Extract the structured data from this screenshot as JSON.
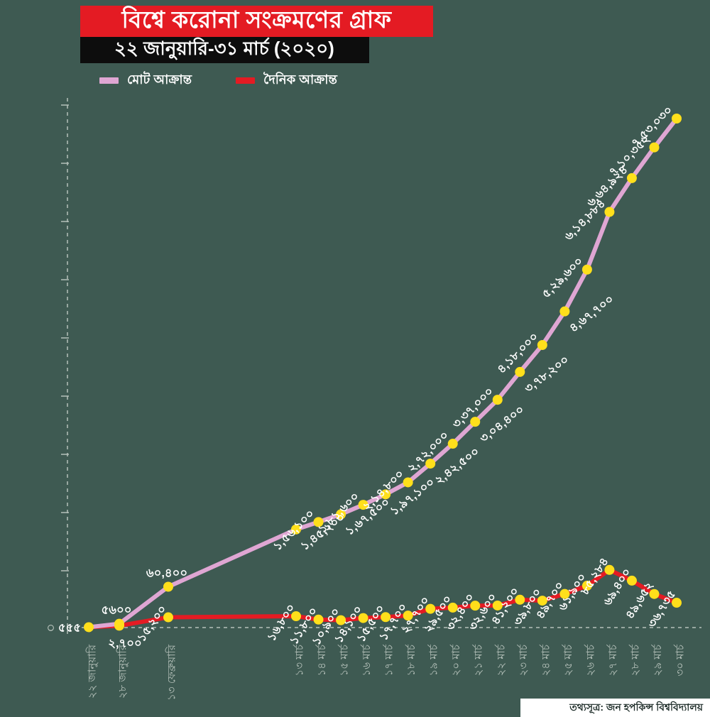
{
  "page": {
    "background_color": "#3e5a52"
  },
  "header": {
    "title": "বিশ্বে করোনা সংক্রমণের গ্রাফ",
    "subtitle": "২২ জানুয়ারি-৩১ মার্চ (২০২০)",
    "title_bar_color": "#e41b23",
    "subtitle_bar_color": "#0d0d0d"
  },
  "legend": [
    {
      "label": "মোট আক্রান্ত",
      "color": "#dfa6d3"
    },
    {
      "label": "দৈনিক আক্রান্ত",
      "color": "#e41b23"
    }
  ],
  "footer": {
    "source": "তথ্যসূত্র: জন হপকিন্স বিশ্ববিদ্যালয়"
  },
  "chart_data": {
    "type": "line",
    "title": "বিশ্বে করোনা সংক্রমণের গ্রাফ",
    "subtitle": "২২ জানুয়ারি-৩১ মার্চ (২০২০)",
    "source": "তথ্যসূত্র: জন হপকিন্স বিশ্ববিদ্যালয়",
    "legend_position": "top",
    "grid": false,
    "point_color": "#ffdf1b",
    "axis_color": "#b5c1ba",
    "x_axis": {
      "categories": [
        "২২ জানুয়ারি",
        "২৮ জানুয়ারি",
        "১৩ ফেব্রুয়ারি",
        "১৩ মার্চ",
        "১৪ মার্চ",
        "১৫ মার্চ",
        "১৬ মার্চ",
        "১৭ মার্চ",
        "১৮ মার্চ",
        "১৯ মার্চ",
        "২০ মার্চ",
        "২১ মার্চ",
        "২২ মার্চ",
        "২৩ মার্চ",
        "২৪ মার্চ",
        "২৫ মার্চ",
        "২৬ মার্চ",
        "২৭ মার্চ",
        "২৮ মার্চ",
        "২৯ মার্চ",
        "৩০ মার্চ"
      ]
    },
    "y_axis": {
      "min": 0,
      "max": 760000,
      "baseline_label": "০",
      "tick_labels_shown": false
    },
    "series": [
      {
        "name": "মোট আক্রান্ত",
        "color": "#dfa6d3",
        "values": [
          555,
          5600,
          60400,
          145200,
          156100,
          167500,
          181600,
          197100,
          214800,
          242500,
          272000,
          304400,
          337000,
          378200,
          418000,
          467700,
          529600,
          614884,
          664924,
          710352,
          753030
        ],
        "labels": [
          "৫৫৫",
          "৫৬০০",
          "৬০,৪০০",
          "১,৪৫,২০০",
          "১,৫৬,১০০",
          "১,৬৭,৫০০",
          "১,৮১,৬০০",
          "১,৯৭,১০০",
          "২,১৪,৮০০",
          "২,৪২,৫০০",
          "২,৭২,০০০",
          "৩,০৪,৪০০",
          "৩,৩৭,০০০",
          "৩,৭৮,২০০",
          "৪,১৮,০০০",
          "৪,৬৭,৭০০",
          "৫,২৯,৬০০",
          "৬,১৪,৮৮৪",
          "৬,৬৪,৯২৪",
          "৭,১০,৩৫২",
          "৭,৫৩,০৩০"
        ]
      },
      {
        "name": "দৈনিক আক্রান্ত",
        "color": "#e41b23",
        "values": [
          555,
          2700,
          15200,
          16800,
          11800,
          10900,
          14100,
          15500,
          17700,
          27700,
          29500,
          32400,
          32600,
          41200,
          39800,
          49700,
          61900,
          85284,
          69400,
          49652,
          36735
        ],
        "labels": [
          "",
          "২,৭০০",
          "১৫,২০০",
          "১৬,৮০০",
          "১১,৮০০",
          "১০,৯০০",
          "১৪,১০০",
          "১৫,৫০০",
          "১৭,৭০০",
          "২৭,৭০০",
          "২৯,৫০০",
          "৩২,৪০০",
          "৩২,৬০০",
          "৪১,২০০",
          "৩৯,৮০০",
          "৪৯,৭০০",
          "৬১,৯০০",
          "৮৫,২৮৪",
          "৬৯,৪০০",
          "৪৯,৬৫২",
          "৩৬,৭৩৫"
        ]
      }
    ]
  }
}
